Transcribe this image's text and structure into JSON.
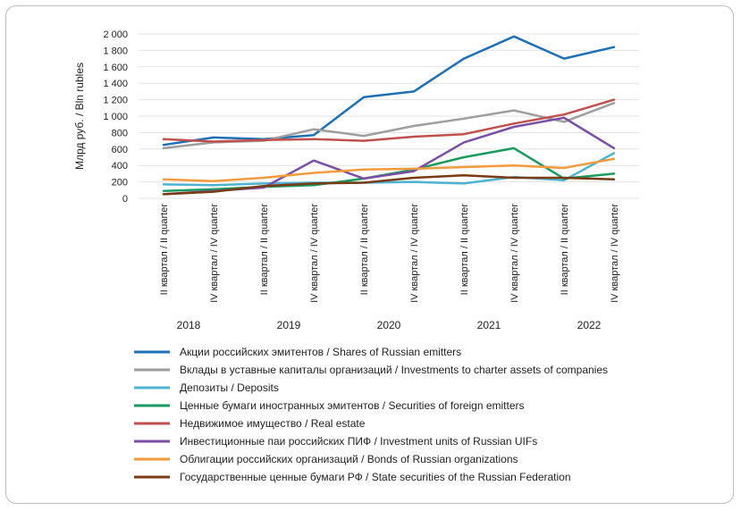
{
  "chart_data": {
    "type": "line",
    "ylabel": "Млрд руб. / Bln rubles",
    "ylim": [
      0,
      2000
    ],
    "yticks": [
      0,
      200,
      400,
      600,
      800,
      1000,
      1200,
      1400,
      1600,
      1800,
      2000
    ],
    "ytick_labels": [
      "0",
      "200",
      "400",
      "600",
      "800",
      "1 000",
      "1 200",
      "1 400",
      "1 600",
      "1 800",
      "2 000"
    ],
    "categories": [
      "II квартал / II quarter",
      "IV квартал / IV quarter",
      "II квартал / II quarter",
      "IV квартал / IV quarter",
      "II квартал / II quarter",
      "IV квартал / IV quarter",
      "II квартал / II quarter",
      "IV квартал / IV quarter",
      "II квартал / II quarter",
      "IV квартал / IV quarter"
    ],
    "years": [
      "2018",
      "2019",
      "2020",
      "2021",
      "2022"
    ],
    "grid": "horizontal",
    "legend_position": "bottom",
    "series": [
      {
        "name": "Акции российских эмитентов / Shares of Russian emitters",
        "color": "#1f6fb5",
        "values": [
          650,
          740,
          720,
          770,
          1230,
          1300,
          1700,
          1970,
          1700,
          1840
        ]
      },
      {
        "name": "Вклады в уставные капиталы организаций / Investments to charter assets of companies",
        "color": "#9e9e9e",
        "values": [
          610,
          680,
          700,
          840,
          760,
          880,
          970,
          1070,
          930,
          1160
        ]
      },
      {
        "name": "Депозиты / Deposits",
        "color": "#4db3d1",
        "values": [
          170,
          160,
          180,
          190,
          190,
          200,
          180,
          260,
          220,
          550
        ]
      },
      {
        "name": "Ценные бумаги иностранных эмитентов / Securities of foreign emitters",
        "color": "#1a9a5c",
        "values": [
          90,
          110,
          140,
          160,
          240,
          350,
          500,
          610,
          240,
          300
        ]
      },
      {
        "name": "Недвижимое имущество / Real estate",
        "color": "#c0504d",
        "values": [
          720,
          690,
          710,
          720,
          700,
          750,
          780,
          910,
          1020,
          1200
        ]
      },
      {
        "name": "Инвестиционные паи российских ПИФ / Investment units of Russian UIFs",
        "color": "#7b4fa6",
        "values": [
          50,
          90,
          130,
          460,
          240,
          330,
          680,
          870,
          980,
          610
        ]
      },
      {
        "name": "Облигации российских организаций / Bonds of Russian organizations",
        "color": "#f39a3c",
        "values": [
          230,
          210,
          250,
          310,
          350,
          360,
          380,
          400,
          370,
          480
        ]
      },
      {
        "name": "Государственные ценные бумаги РФ / State securities of the Russian Federation",
        "color": "#7a3b14",
        "values": [
          50,
          80,
          150,
          180,
          190,
          250,
          280,
          250,
          250,
          230
        ]
      }
    ]
  }
}
